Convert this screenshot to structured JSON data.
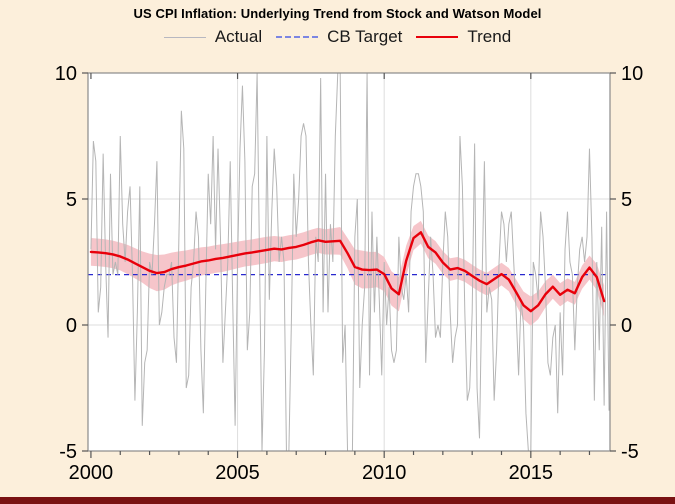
{
  "page": {
    "background_color": "#fcefdb",
    "footer_bar_color": "#7a1212"
  },
  "chart_data": {
    "type": "line",
    "title": "US CPI Inflation: Underlying Trend from Stock and Watson Model",
    "legend": [
      {
        "label": "Actual",
        "color": "#b7b7c0",
        "style": "solid"
      },
      {
        "label": "CB Target",
        "color": "#7b85e2",
        "style": "dashed"
      },
      {
        "label": "Trend",
        "color": "#e8000b",
        "style": "solid"
      }
    ],
    "x_range": [
      1999.9,
      2017.7
    ],
    "y_range": [
      -5,
      10
    ],
    "x_major_ticks": [
      2000,
      2005,
      2010,
      2015
    ],
    "x_minor_ticks": [
      2000,
      2001,
      2002,
      2003,
      2004,
      2005,
      2006,
      2007,
      2008,
      2009,
      2010,
      2011,
      2012,
      2013,
      2014,
      2015,
      2016,
      2017
    ],
    "y_ticks": [
      -5,
      0,
      5,
      10
    ],
    "gridlines": {
      "x": [
        2005,
        2010,
        2015
      ],
      "y": [
        0,
        5
      ]
    },
    "grid_on": true,
    "legend_position": "top-center",
    "cb_target_value": 2,
    "colors": {
      "actual": "#b5b5b5",
      "trend": "#e8000b",
      "band": "#f6c5ca",
      "target": "#2828cf",
      "grid": "#dedede",
      "frame": "#8a8a8a",
      "tick": "#555555",
      "text": "#000000",
      "plot_bg": "#ffffff"
    },
    "trend": {
      "name": "Trend (Stock-Watson underlying inflation, with confidence band)",
      "start_year": 2000.0,
      "interval_years": 0.25,
      "values": [
        2.9,
        2.88,
        2.85,
        2.8,
        2.72,
        2.6,
        2.45,
        2.3,
        2.15,
        2.06,
        2.1,
        2.22,
        2.3,
        2.36,
        2.44,
        2.52,
        2.56,
        2.62,
        2.66,
        2.72,
        2.78,
        2.84,
        2.88,
        2.93,
        2.98,
        3.03,
        3.0,
        3.06,
        3.1,
        3.18,
        3.28,
        3.36,
        3.3,
        3.32,
        3.34,
        2.85,
        2.3,
        2.2,
        2.18,
        2.2,
        2.02,
        1.45,
        1.22,
        2.55,
        3.45,
        3.68,
        3.1,
        2.88,
        2.48,
        2.2,
        2.26,
        2.15,
        1.95,
        1.76,
        1.62,
        1.82,
        2.02,
        1.8,
        1.3,
        0.78,
        0.55,
        0.78,
        1.22,
        1.52,
        1.2,
        1.4,
        1.26,
        1.9,
        2.28,
        1.9,
        0.95
      ],
      "band_halfwidth": [
        0.55,
        0.55,
        0.55,
        0.55,
        0.55,
        0.58,
        0.6,
        0.62,
        0.68,
        0.72,
        0.7,
        0.65,
        0.62,
        0.6,
        0.58,
        0.56,
        0.55,
        0.55,
        0.55,
        0.54,
        0.53,
        0.52,
        0.52,
        0.52,
        0.52,
        0.5,
        0.5,
        0.5,
        0.5,
        0.5,
        0.5,
        0.5,
        0.5,
        0.52,
        0.55,
        0.6,
        0.7,
        0.75,
        0.72,
        0.7,
        0.68,
        0.68,
        0.68,
        0.6,
        0.48,
        0.45,
        0.45,
        0.45,
        0.45,
        0.45,
        0.44,
        0.44,
        0.44,
        0.44,
        0.45,
        0.45,
        0.45,
        0.46,
        0.5,
        0.55,
        0.58,
        0.55,
        0.52,
        0.48,
        0.46,
        0.45,
        0.45,
        0.46,
        0.48,
        0.52,
        0.62
      ]
    },
    "actual": {
      "name": "Actual (monthly annualized CPI inflation, clipped at axis limits)",
      "start_year": 2000.0,
      "interval_years": 0.0833333,
      "values": [
        3.0,
        7.3,
        6.5,
        0.5,
        1.5,
        6.8,
        2.5,
        -0.5,
        6.0,
        2.0,
        2.5,
        2.0,
        7.5,
        4.0,
        2.5,
        4.5,
        5.5,
        2.0,
        -3.0,
        0.5,
        5.5,
        -4.0,
        -1.5,
        -1.0,
        2.5,
        2.0,
        4.0,
        6.5,
        0.0,
        0.5,
        1.5,
        2.0,
        2.0,
        2.5,
        -0.5,
        -1.5,
        3.5,
        8.5,
        7.0,
        -2.5,
        -2.0,
        1.5,
        2.5,
        4.5,
        3.5,
        -1.0,
        -3.5,
        1.5,
        6.0,
        4.0,
        7.5,
        3.0,
        7.0,
        3.5,
        -1.5,
        0.5,
        2.5,
        6.5,
        1.0,
        -4.0,
        2.5,
        7.0,
        9.5,
        6.5,
        -1.0,
        0.5,
        5.5,
        6.0,
        15.0,
        2.5,
        -7.0,
        -1.0,
        7.5,
        1.0,
        4.5,
        7.0,
        5.5,
        2.5,
        3.5,
        2.5,
        -6.0,
        -6.5,
        0.0,
        6.0,
        3.5,
        5.0,
        7.5,
        8.0,
        7.5,
        2.5,
        0.0,
        -2.0,
        3.5,
        2.5,
        9.8,
        0.5,
        6.0,
        0.5,
        4.0,
        2.5,
        7.5,
        12.0,
        10.0,
        -1.5,
        0.0,
        -11.0,
        -20.0,
        -12.0,
        3.5,
        5.0,
        -2.5,
        0.0,
        1.5,
        10.5,
        -2.0,
        4.5,
        0.5,
        3.5,
        1.0,
        -2.0,
        2.5,
        0.0,
        1.5,
        -1.0,
        -1.5,
        -1.0,
        3.5,
        1.5,
        1.0,
        2.0,
        0.5,
        4.5,
        5.5,
        6.0,
        6.0,
        5.5,
        4.5,
        -1.5,
        1.0,
        3.5,
        2.0,
        -0.5,
        0.0,
        -0.5,
        2.5,
        4.5,
        3.5,
        0.5,
        -1.5,
        -0.5,
        0.0,
        7.5,
        5.5,
        0.5,
        -3.0,
        -2.5,
        0.5,
        7.2,
        -2.5,
        -4.5,
        1.5,
        6.5,
        0.5,
        1.5,
        1.0,
        -3.0,
        -1.0,
        2.5,
        4.5,
        4.0,
        2.5,
        4.0,
        4.5,
        2.5,
        0.5,
        -2.0,
        1.0,
        0.0,
        -3.5,
        -6.5,
        -8.5,
        2.5,
        2.0,
        1.0,
        4.5,
        3.5,
        1.5,
        -1.5,
        -2.0,
        -0.5,
        0.0,
        -3.5,
        0.5,
        -2.0,
        3.0,
        4.5,
        2.5,
        2.0,
        -1.0,
        1.5,
        3.0,
        3.5,
        2.5,
        3.5,
        7.0,
        3.5,
        -3.0,
        2.5,
        -1.0,
        3.9,
        -3.2,
        4.5,
        -3.4
      ]
    }
  }
}
